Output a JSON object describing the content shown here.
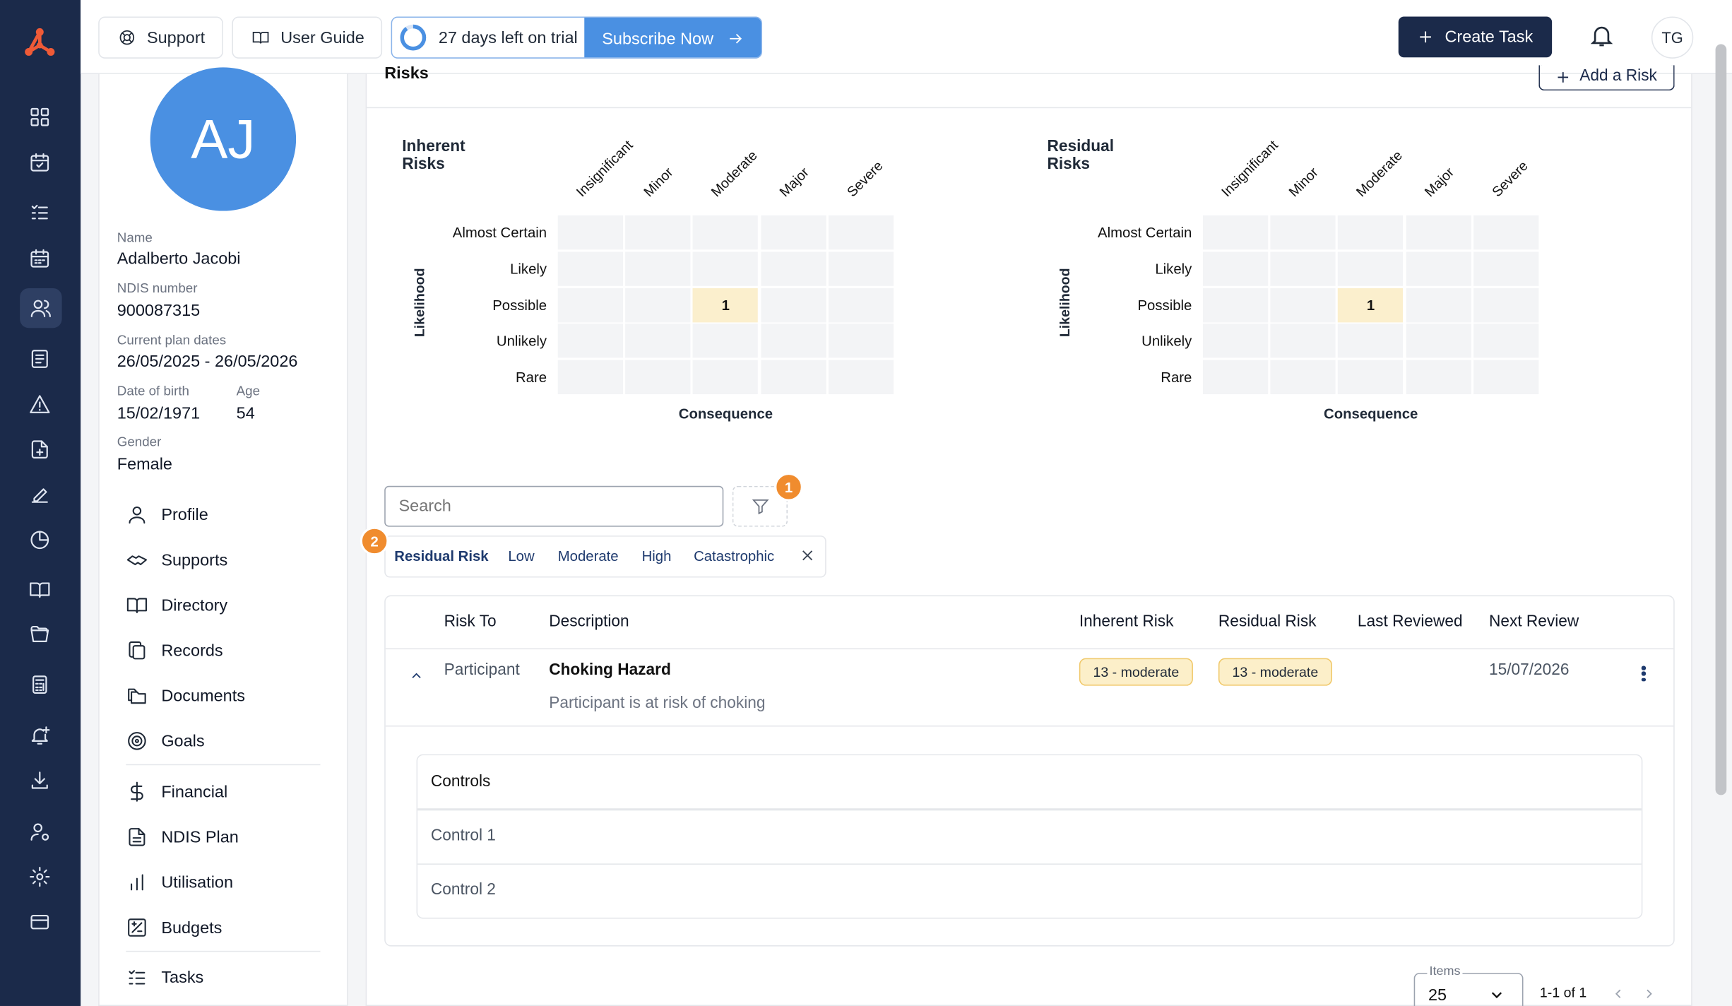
{
  "topbar": {
    "support_label": "Support",
    "user_guide_label": "User Guide",
    "trial_text": "27 days left on trial",
    "subscribe_label": "Subscribe Now",
    "create_task_label": "Create Task",
    "user_initials": "TG",
    "trial_progress": 0.9
  },
  "participant": {
    "initials": "AJ",
    "name_label": "Name",
    "name": "Adalberto Jacobi",
    "ndis_label": "NDIS number",
    "ndis": "900087315",
    "plan_label": "Current plan dates",
    "plan_dates": "26/05/2025 - 26/05/2026",
    "dob_label": "Date of birth",
    "dob": "15/02/1971",
    "age_label": "Age",
    "age": "54",
    "gender_label": "Gender",
    "gender": "Female"
  },
  "nav": [
    {
      "label": "Profile",
      "icon": "person-icon"
    },
    {
      "label": "Supports",
      "icon": "handshake-icon"
    },
    {
      "label": "Directory",
      "icon": "book-icon"
    },
    {
      "label": "Records",
      "icon": "copy-icon"
    },
    {
      "label": "Documents",
      "icon": "folders-icon"
    },
    {
      "label": "Goals",
      "icon": "target-icon"
    },
    {
      "label": "Financial",
      "icon": "dollar-icon"
    },
    {
      "label": "NDIS Plan",
      "icon": "file-icon"
    },
    {
      "label": "Utilisation",
      "icon": "bar-chart-icon"
    },
    {
      "label": "Budgets",
      "icon": "plus-minus-icon"
    },
    {
      "label": "Tasks",
      "icon": "task-list-icon"
    }
  ],
  "risks": {
    "title": "Risks",
    "add_label": "Add a Risk",
    "inherent_title": "Inherent Risks",
    "residual_title": "Residual Risks",
    "likelihood_label": "Likelihood",
    "consequence_label": "Consequence",
    "consequences": [
      "Insignificant",
      "Minor",
      "Moderate",
      "Major",
      "Severe"
    ],
    "likelihoods": [
      "Almost Certain",
      "Likely",
      "Possible",
      "Unlikely",
      "Rare"
    ],
    "inherent_cell_value": "1",
    "residual_cell_value": "1"
  },
  "filter": {
    "search_placeholder": "Search",
    "badge_1": "1",
    "badge_2": "2",
    "chip_title": "Residual Risk",
    "chips": [
      "Low",
      "Moderate",
      "High",
      "Catastrophic"
    ]
  },
  "table": {
    "headers": [
      "Risk To",
      "Description",
      "Inherent Risk",
      "Residual Risk",
      "Last Reviewed",
      "Next Review"
    ],
    "row": {
      "risk_to": "Participant",
      "title": "Choking Hazard",
      "description": "Participant is at risk of choking",
      "inherent": "13 - moderate",
      "residual": "13 - moderate",
      "last_reviewed": "",
      "next_review": "15/07/2026"
    },
    "controls_header": "Controls",
    "controls": [
      "Control 1",
      "Control 2"
    ]
  },
  "pagination": {
    "items_label": "Items",
    "items_value": "25",
    "range": "1-1 of 1"
  },
  "colors": {
    "rail": "#1b2a4a",
    "accent": "#4a90e2",
    "highlight": "#fbefcd",
    "badge_orange": "#f08c2e"
  }
}
